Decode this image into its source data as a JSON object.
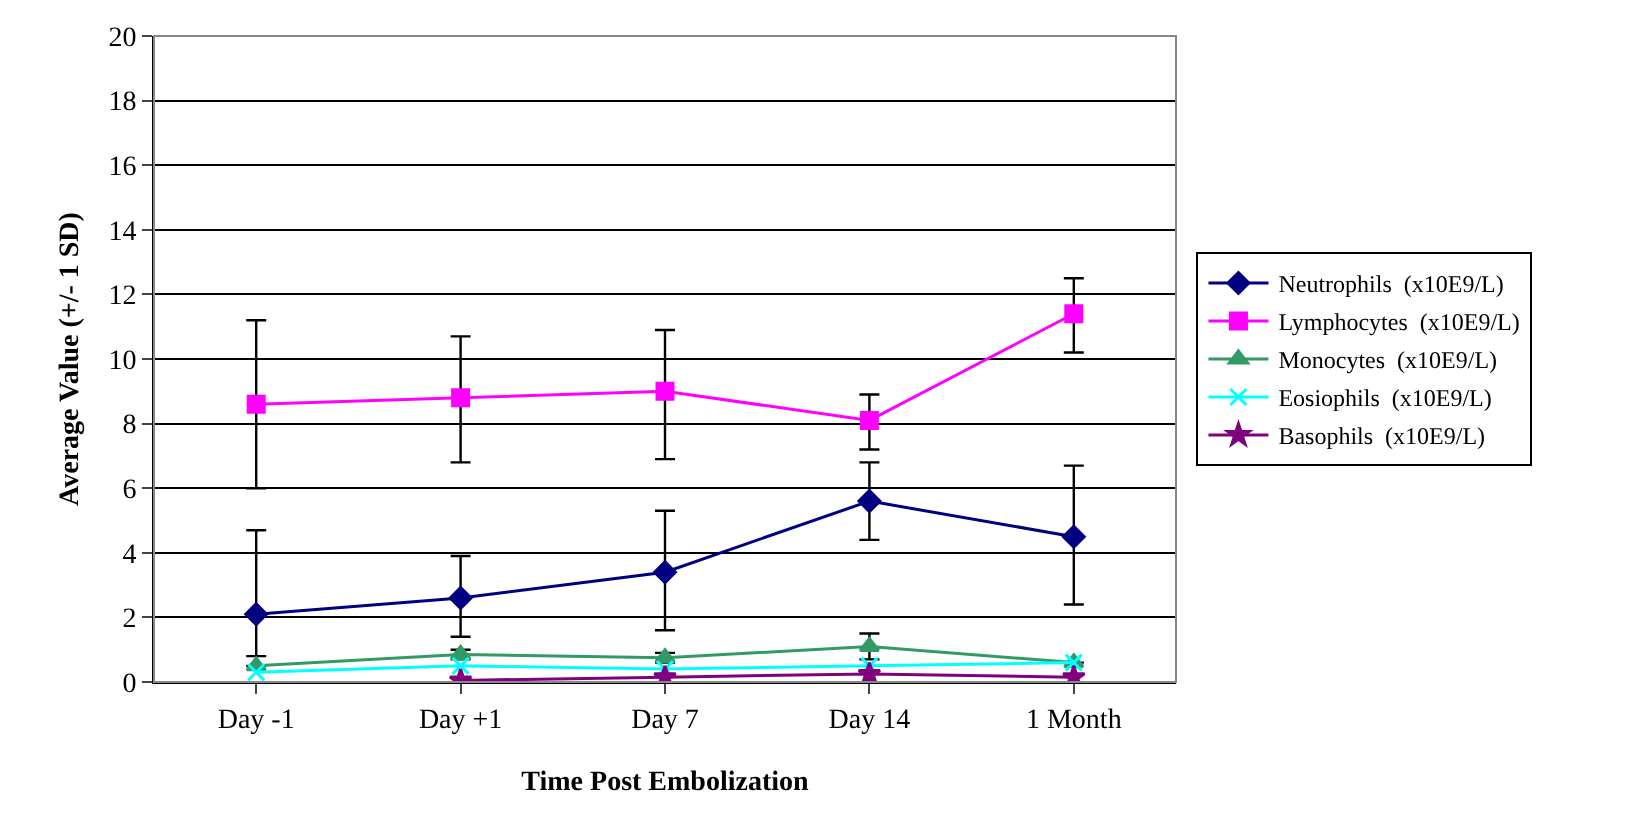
{
  "chart_data": {
    "type": "line",
    "xlabel": "Time Post Embolization",
    "ylabel": "Average Value (+/- 1 SD)",
    "categories": [
      "Day -1",
      "Day +1",
      "Day 7",
      "Day 14",
      "1 Month"
    ],
    "ylim": [
      0,
      20
    ],
    "yticks": [
      0,
      2,
      4,
      6,
      8,
      10,
      12,
      14,
      16,
      18,
      20
    ],
    "grid": "y",
    "legend": "right",
    "series": [
      {
        "name": "Neutrophils  (x10E9/L)",
        "color": "#000080",
        "marker": "diamond",
        "values": [
          2.1,
          2.6,
          3.4,
          5.6,
          4.5
        ],
        "errors": [
          [
            0.8,
            4.7
          ],
          [
            1.4,
            3.9
          ],
          [
            1.6,
            5.3
          ],
          [
            4.4,
            6.8
          ],
          [
            2.4,
            6.7
          ]
        ]
      },
      {
        "name": "Lymphocytes  (x10E9/L)",
        "color": "#ff00ff",
        "marker": "square",
        "values": [
          8.6,
          8.8,
          9.0,
          8.1,
          11.4
        ],
        "errors": [
          [
            6.0,
            11.2
          ],
          [
            6.8,
            10.7
          ],
          [
            6.9,
            10.9
          ],
          [
            7.2,
            8.9
          ],
          [
            10.2,
            12.5
          ]
        ]
      },
      {
        "name": "Monocytes  (x10E9/L)",
        "color": "#339966",
        "marker": "triangle",
        "values": [
          0.5,
          0.85,
          0.75,
          1.1,
          0.6
        ],
        "errors": [
          null,
          [
            0.7,
            1.0
          ],
          [
            0.6,
            0.9
          ],
          [
            0.7,
            1.5
          ],
          null
        ]
      },
      {
        "name": "Eosiophils  (x10E9/L)",
        "color": "#00ffff",
        "marker": "cross",
        "values": [
          0.3,
          0.5,
          0.4,
          0.5,
          0.6
        ]
      },
      {
        "name": "Basophils  (x10E9/L)",
        "color": "#800080",
        "marker": "star",
        "values": [
          null,
          0.05,
          0.15,
          0.25,
          0.15
        ]
      }
    ]
  }
}
